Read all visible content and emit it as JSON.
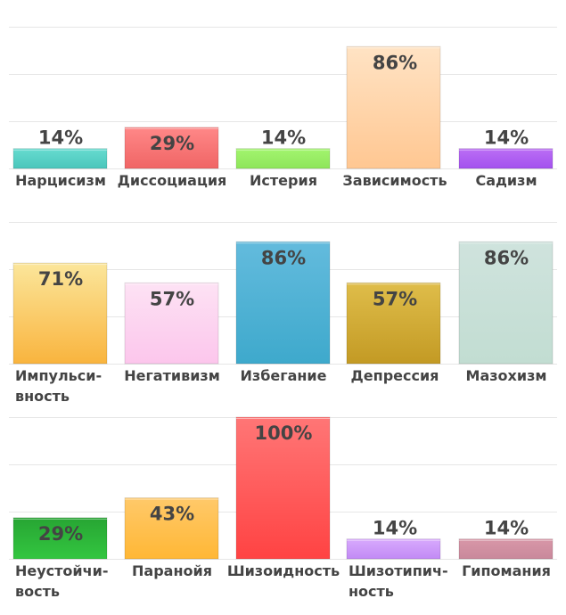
{
  "chart_data": [
    {
      "type": "bar",
      "ylim": [
        0,
        100
      ],
      "grid": true,
      "categories": [
        "Нарцисизм",
        "Диссоциация",
        "Истерия",
        "Зависимость",
        "Садизм"
      ],
      "values": [
        14,
        29,
        14,
        86,
        14
      ],
      "value_labels": [
        "14%",
        "29%",
        "14%",
        "86%",
        "14%"
      ],
      "colors": [
        [
          "#67dcd0",
          "#4ac6bb"
        ],
        [
          "#ff8888",
          "#f06565"
        ],
        [
          "#a3f56f",
          "#8ee55a"
        ],
        [
          "#ffe3c4",
          "#ffc792"
        ],
        [
          "#bb6ef5",
          "#a351ee"
        ]
      ]
    },
    {
      "type": "bar",
      "ylim": [
        0,
        100
      ],
      "grid": true,
      "categories": [
        "Импульси-вность",
        "Негативизм",
        "Избегание",
        "Депрессия",
        "Мазохизм"
      ],
      "values": [
        71,
        57,
        86,
        57,
        86
      ],
      "value_labels": [
        "71%",
        "57%",
        "86%",
        "57%",
        "86%"
      ],
      "colors": [
        [
          "#fbe69b",
          "#f9b43e"
        ],
        [
          "#fde2f4",
          "#fcc6ec"
        ],
        [
          "#63bbdd",
          "#3ea9cc"
        ],
        [
          "#dfbd4a",
          "#c39a24"
        ],
        [
          "#cfe3dd",
          "#c2ddd2"
        ]
      ]
    },
    {
      "type": "bar",
      "ylim": [
        0,
        100
      ],
      "grid": true,
      "categories": [
        "Неустойчи-вость",
        "Паранойя",
        "Шизоидность",
        "Шизотипич-ность",
        "Гипомания"
      ],
      "values": [
        29,
        43,
        100,
        14,
        14
      ],
      "value_labels": [
        "29%",
        "43%",
        "100%",
        "14%",
        "14%"
      ],
      "colors": [
        [
          "#27a533",
          "#33c640"
        ],
        [
          "#ffc96a",
          "#ffb735"
        ],
        [
          "#ff7676",
          "#ff4343"
        ],
        [
          "#d8aafd",
          "#c28af5"
        ],
        [
          "#d897a8",
          "#c9889b"
        ]
      ]
    }
  ]
}
